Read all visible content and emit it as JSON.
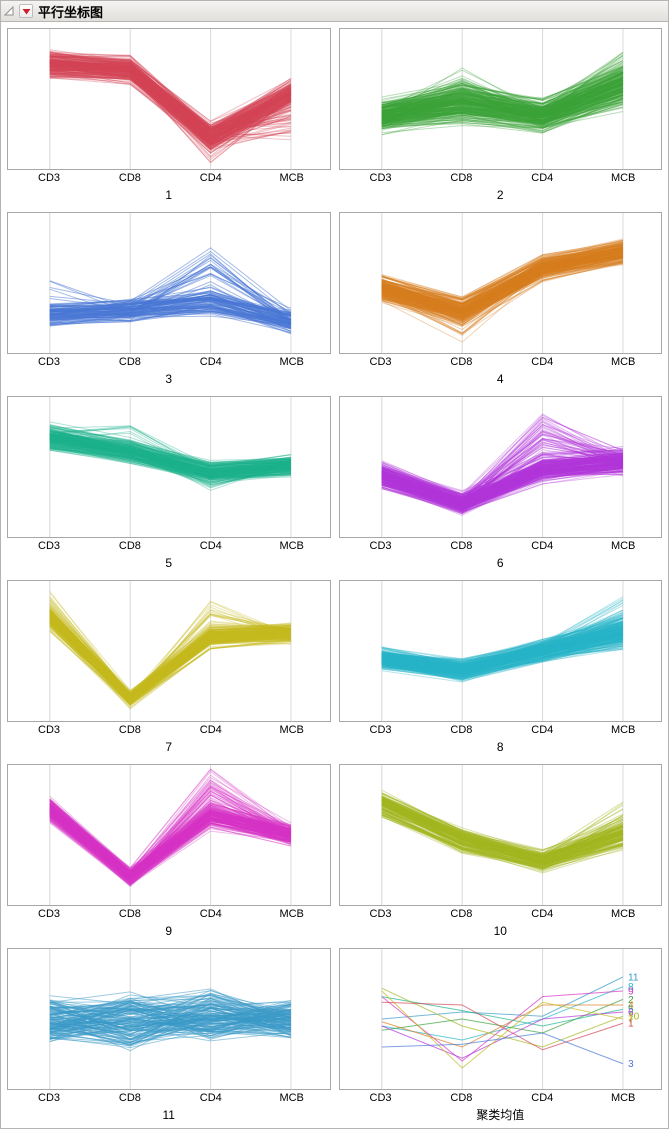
{
  "window": {
    "title": "平行坐标图",
    "red_triangle_color": "#CC2229",
    "titlebar_background": "#ECEAE6"
  },
  "chart_data": {
    "type": "line",
    "variant": "parallel-coordinates-small-multiples",
    "title": "平行坐标图",
    "grid": true,
    "axes": [
      "CD3",
      "CD8",
      "CD4",
      "MCB"
    ],
    "value_scale": [
      0,
      1
    ],
    "panels": [
      {
        "label": "1",
        "color": "#D34455",
        "n_lines": 230,
        "opacity": 0.35,
        "mean": [
          0.75,
          0.71,
          0.24,
          0.54
        ],
        "spread": [
          0.12,
          0.12,
          0.13,
          0.13
        ],
        "spikes": [
          {
            "axis": 2,
            "frac": 0.12,
            "max": -0.14
          },
          {
            "axis": 3,
            "frac": 0.14,
            "max": -0.28
          }
        ]
      },
      {
        "label": "2",
        "color": "#3BA23A",
        "n_lines": 270,
        "opacity": 0.35,
        "mean": [
          0.38,
          0.47,
          0.38,
          0.6
        ],
        "spread": [
          0.14,
          0.17,
          0.14,
          0.2
        ],
        "spikes": [
          {
            "axis": 1,
            "frac": 0.1,
            "max": 0.22
          },
          {
            "axis": 3,
            "frac": 0.08,
            "max": 0.18
          }
        ]
      },
      {
        "label": "3",
        "color": "#4A78D6",
        "n_lines": 110,
        "opacity": 0.5,
        "jit": 0.9,
        "mean": [
          0.27,
          0.3,
          0.37,
          0.22
        ],
        "spread": [
          0.09,
          0.09,
          0.12,
          0.1
        ],
        "spikes": [
          {
            "axis": 2,
            "frac": 0.14,
            "max": 0.34
          },
          {
            "axis": 0,
            "frac": 0.07,
            "max": 0.28
          }
        ]
      },
      {
        "label": "4",
        "color": "#D87D1F",
        "n_lines": 240,
        "opacity": 0.35,
        "mean": [
          0.46,
          0.3,
          0.61,
          0.72
        ],
        "spread": [
          0.12,
          0.12,
          0.11,
          0.11
        ],
        "spikes": [
          {
            "axis": 1,
            "frac": 0.1,
            "max": -0.16
          }
        ]
      },
      {
        "label": "5",
        "color": "#1CB38C",
        "n_lines": 210,
        "opacity": 0.35,
        "mean": [
          0.71,
          0.61,
          0.46,
          0.51
        ],
        "spread": [
          0.12,
          0.11,
          0.1,
          0.1
        ],
        "spikes": [
          {
            "axis": 1,
            "frac": 0.08,
            "max": 0.18
          },
          {
            "axis": 2,
            "frac": 0.1,
            "max": -0.12
          }
        ]
      },
      {
        "label": "6",
        "color": "#B136DB",
        "n_lines": 250,
        "opacity": 0.35,
        "mean": [
          0.44,
          0.24,
          0.49,
          0.54
        ],
        "spread": [
          0.13,
          0.11,
          0.14,
          0.12
        ],
        "spikes": [
          {
            "axis": 2,
            "frac": 0.14,
            "max": 0.36
          }
        ]
      },
      {
        "label": "7",
        "color": "#C5BB20",
        "n_lines": 210,
        "opacity": 0.35,
        "mean": [
          0.74,
          0.16,
          0.6,
          0.63
        ],
        "spread": [
          0.11,
          0.08,
          0.11,
          0.09
        ],
        "spikes": [
          {
            "axis": 2,
            "frac": 0.1,
            "max": 0.26
          },
          {
            "axis": 0,
            "frac": 0.07,
            "max": 0.14
          }
        ]
      },
      {
        "label": "8",
        "color": "#29B5C8",
        "n_lines": 270,
        "opacity": 0.35,
        "mean": [
          0.44,
          0.36,
          0.5,
          0.63
        ],
        "spread": [
          0.1,
          0.1,
          0.1,
          0.15
        ],
        "spikes": [
          {
            "axis": 3,
            "frac": 0.08,
            "max": 0.2
          }
        ]
      },
      {
        "label": "9",
        "color": "#D633C6",
        "n_lines": 210,
        "opacity": 0.35,
        "mean": [
          0.68,
          0.2,
          0.64,
          0.5
        ],
        "spread": [
          0.11,
          0.08,
          0.12,
          0.1
        ],
        "spikes": [
          {
            "axis": 2,
            "frac": 0.12,
            "max": 0.26
          }
        ]
      },
      {
        "label": "10",
        "color": "#A2B621",
        "n_lines": 160,
        "opacity": 0.4,
        "mean": [
          0.72,
          0.46,
          0.31,
          0.5
        ],
        "spread": [
          0.11,
          0.11,
          0.1,
          0.13
        ],
        "spikes": [
          {
            "axis": 3,
            "frac": 0.1,
            "max": 0.18
          }
        ]
      },
      {
        "label": "11",
        "color": "#3A9AC8",
        "n_lines": 130,
        "opacity": 0.5,
        "corr": 0.3,
        "jit": 1.4,
        "mean": [
          0.5,
          0.49,
          0.52,
          0.5
        ],
        "spread": [
          0.2,
          0.25,
          0.23,
          0.17
        ],
        "spikes": []
      },
      {
        "label": "聚类均值",
        "kind": "means",
        "series": [
          {
            "cluster": "11",
            "color": "#3A9AC8",
            "values": [
              0.5,
              0.55,
              0.52,
              0.8
            ]
          },
          {
            "cluster": "8",
            "color": "#29B5C8",
            "values": [
              0.45,
              0.35,
              0.5,
              0.73
            ]
          },
          {
            "cluster": "9",
            "color": "#D633C6",
            "values": [
              0.66,
              0.2,
              0.66,
              0.7
            ]
          },
          {
            "cluster": "2",
            "color": "#3BA23A",
            "values": [
              0.42,
              0.5,
              0.4,
              0.64
            ]
          },
          {
            "cluster": "4",
            "color": "#D87D1F",
            "values": [
              0.48,
              0.3,
              0.6,
              0.6
            ]
          },
          {
            "cluster": "5",
            "color": "#1CB38C",
            "values": [
              0.66,
              0.56,
              0.45,
              0.57
            ]
          },
          {
            "cluster": "6",
            "color": "#B136DB",
            "values": [
              0.45,
              0.22,
              0.5,
              0.55
            ]
          },
          {
            "cluster": "10",
            "color": "#A2B621",
            "values": [
              0.72,
              0.45,
              0.3,
              0.52
            ]
          },
          {
            "cluster": "7",
            "color": "#C5BB20",
            "values": [
              0.7,
              0.15,
              0.62,
              0.5
            ]
          },
          {
            "cluster": "1",
            "color": "#D34455",
            "values": [
              0.62,
              0.6,
              0.28,
              0.47
            ]
          },
          {
            "cluster": "3",
            "color": "#4A78D6",
            "values": [
              0.3,
              0.32,
              0.4,
              0.18
            ]
          }
        ]
      }
    ]
  }
}
